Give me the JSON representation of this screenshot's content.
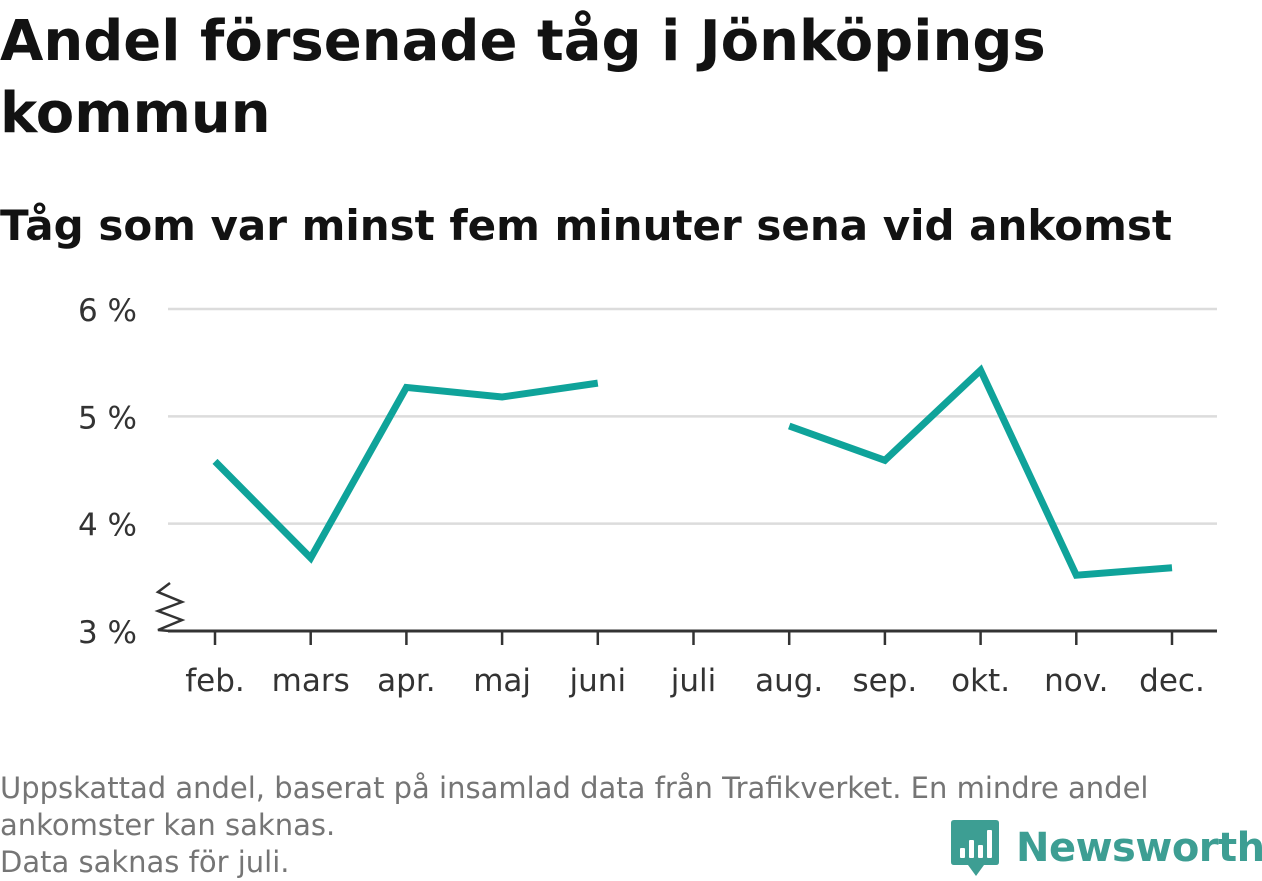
{
  "header": {
    "title": "Andel försenade tåg i Jönköpings kommun",
    "subtitle": "Tåg som var minst fem minuter sena vid ankomst"
  },
  "chart_data": {
    "type": "line",
    "categories": [
      "feb.",
      "mars",
      "apr.",
      "maj",
      "juni",
      "juli",
      "aug.",
      "sep.",
      "okt.",
      "nov.",
      "dec."
    ],
    "series": [
      {
        "values": [
          4.58,
          3.68,
          5.27,
          5.18,
          5.31,
          null,
          4.91,
          4.59,
          5.43,
          3.52,
          3.59
        ],
        "color": "#0fa39a"
      }
    ],
    "ylim": [
      3,
      6
    ],
    "yticks": [
      3,
      4,
      5,
      6
    ],
    "ytick_labels": [
      "3 %",
      "4 %",
      "5 %",
      "6 %"
    ],
    "axis_break": true,
    "grid": true,
    "legend": "none"
  },
  "footnote": {
    "line1": "Uppskattad andel, baserat på insamlad data från Trafikverket. En mindre andel ankomster kan saknas.",
    "line2": "Data saknas för juli."
  },
  "logo": {
    "text": "Newsworthy",
    "icon": "newsworthy-chart-icon",
    "color": "#3d9e93"
  }
}
